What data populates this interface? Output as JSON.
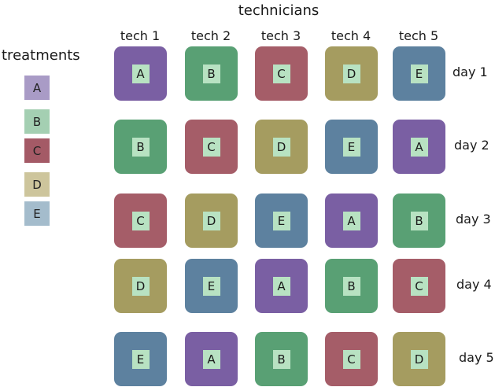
{
  "title": "technicians",
  "legend": {
    "title": "treatments",
    "items": [
      {
        "label": "A",
        "color": "#a99bc6"
      },
      {
        "label": "B",
        "color": "#a4cfb2"
      },
      {
        "label": "C",
        "color": "#a45a66"
      },
      {
        "label": "D",
        "color": "#cdc59c"
      },
      {
        "label": "E",
        "color": "#a4bccc"
      }
    ]
  },
  "columns": [
    "tech 1",
    "tech 2",
    "tech 3",
    "tech 4",
    "tech 5"
  ],
  "rows": [
    "day 1",
    "day 2",
    "day 3",
    "day 4",
    "day 5"
  ],
  "treatment_colors": {
    "A": "#7a5fa3",
    "B": "#59a074",
    "C": "#a55d68",
    "D": "#a59c60",
    "E": "#5d819f"
  },
  "grid": [
    [
      "A",
      "B",
      "C",
      "D",
      "E"
    ],
    [
      "B",
      "C",
      "D",
      "E",
      "A"
    ],
    [
      "C",
      "D",
      "E",
      "A",
      "B"
    ],
    [
      "D",
      "E",
      "A",
      "B",
      "C"
    ],
    [
      "E",
      "A",
      "B",
      "C",
      "D"
    ]
  ]
}
